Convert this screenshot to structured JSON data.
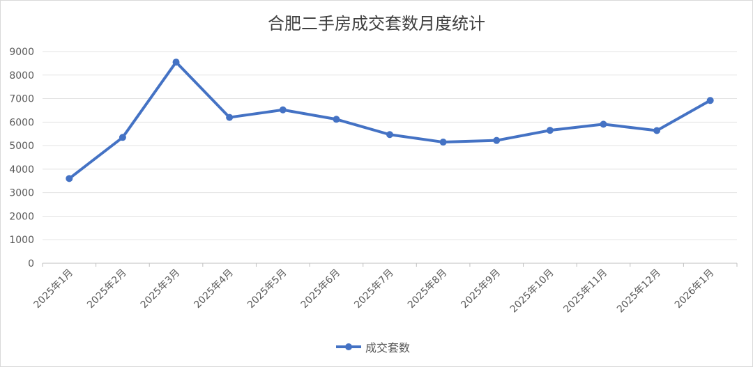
{
  "chart_data": {
    "type": "line",
    "title": "合肥二手房成交套数月度统计",
    "categories": [
      "2025年1月",
      "2025年2月",
      "2025年3月",
      "2025年4月",
      "2025年5月",
      "2025年6月",
      "2025年7月",
      "2025年8月",
      "2025年9月",
      "2025年10月",
      "2025年11月",
      "2025年12月",
      "2026年1月"
    ],
    "series": [
      {
        "name": "成交套数",
        "color": "#4472c4",
        "values": [
          3600,
          5350,
          8550,
          6200,
          6520,
          6120,
          5470,
          5150,
          5220,
          5650,
          5910,
          5640,
          6920
        ]
      }
    ],
    "yticks": [
      "0",
      "1000",
      "2000",
      "3000",
      "4000",
      "5000",
      "6000",
      "7000",
      "8000",
      "9000"
    ],
    "ylim": [
      0,
      9000
    ],
    "grid": true,
    "legend_position": "bottom"
  }
}
